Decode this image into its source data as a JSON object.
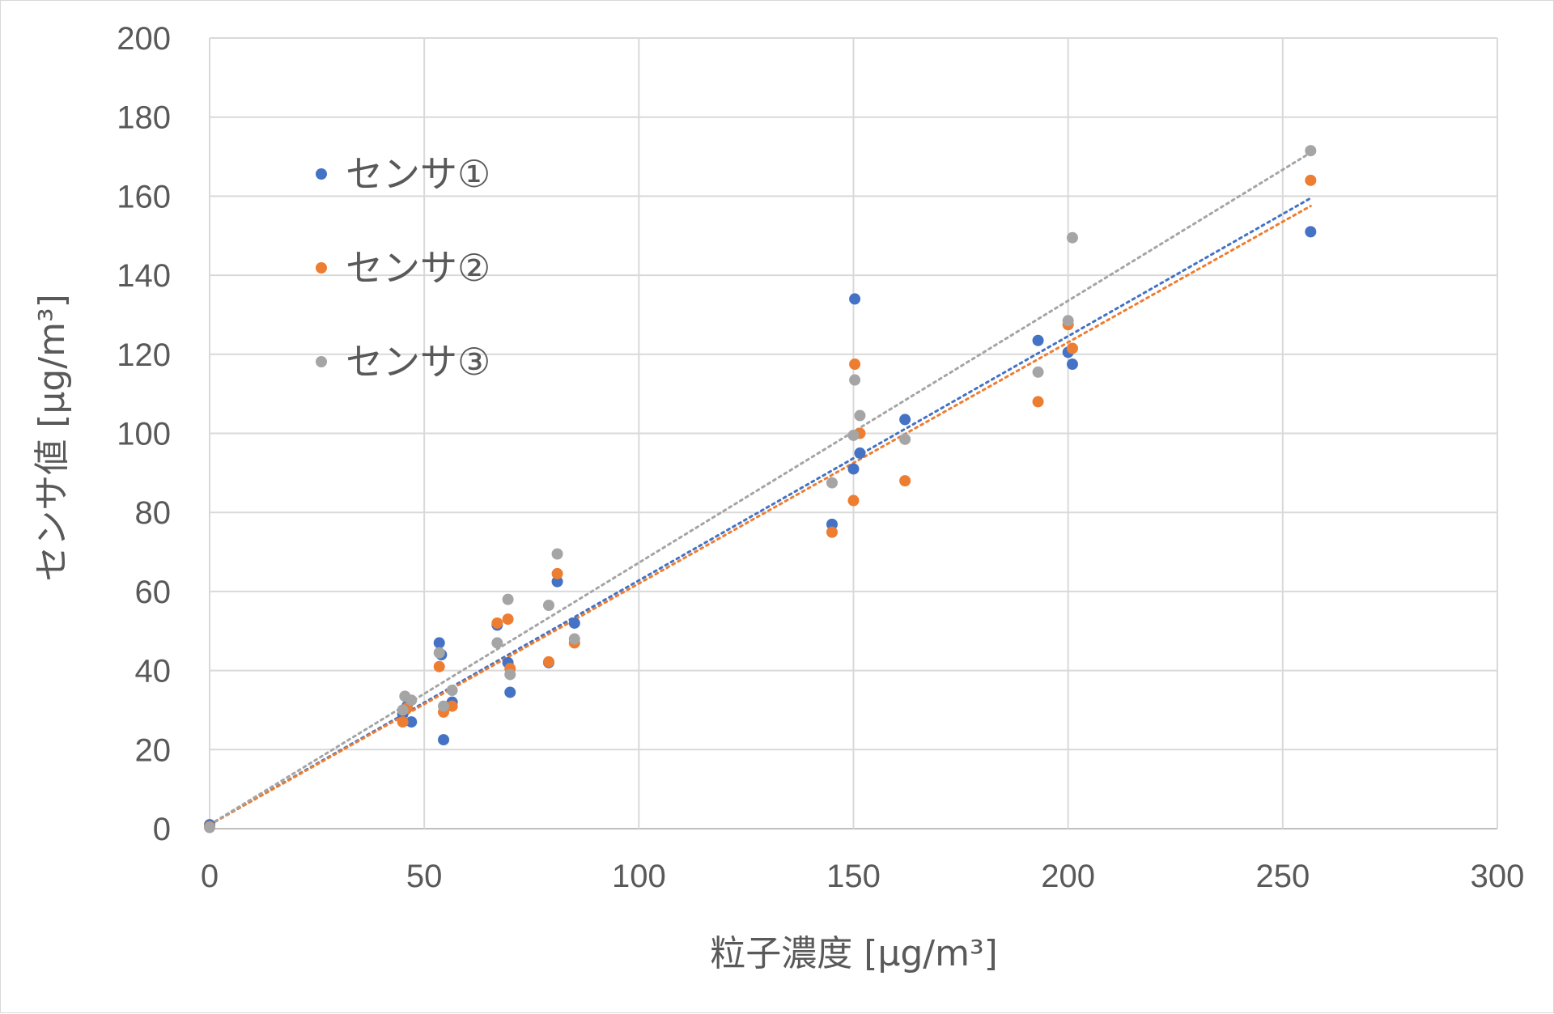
{
  "chart_data": {
    "type": "scatter",
    "title": "",
    "xlabel": "粒子濃度 [μg/m³]",
    "ylabel": "センサ値 [μg/m³]",
    "xlim": [
      0,
      300
    ],
    "ylim": [
      0,
      200
    ],
    "xticks": [
      0,
      50,
      100,
      150,
      200,
      250,
      300
    ],
    "yticks": [
      0,
      20,
      40,
      60,
      80,
      100,
      120,
      140,
      160,
      180,
      200
    ],
    "grid": true,
    "legend_position": "top-left",
    "trendline": "linear, dotted",
    "series": [
      {
        "name": "センサ①",
        "color": "#4472c4",
        "points": [
          [
            0,
            1
          ],
          [
            45,
            29
          ],
          [
            46,
            31
          ],
          [
            47,
            27
          ],
          [
            53.5,
            47
          ],
          [
            54,
            44
          ],
          [
            54.5,
            22.5
          ],
          [
            56.5,
            32
          ],
          [
            67,
            51.5
          ],
          [
            69.5,
            42
          ],
          [
            70,
            34.5
          ],
          [
            79,
            42
          ],
          [
            81,
            62.5
          ],
          [
            85,
            52
          ],
          [
            145,
            77
          ],
          [
            150,
            91
          ],
          [
            150.3,
            134
          ],
          [
            151.5,
            95
          ],
          [
            162,
            103.5
          ],
          [
            193,
            123.5
          ],
          [
            200,
            120.5
          ],
          [
            201,
            117.5
          ],
          [
            256.5,
            151
          ]
        ],
        "trend": [
          [
            0,
            1
          ],
          [
            256.5,
            159.5
          ]
        ]
      },
      {
        "name": "センサ②",
        "color": "#ed7d31",
        "points": [
          [
            0,
            0.5
          ],
          [
            45,
            27
          ],
          [
            46,
            30.5
          ],
          [
            53.5,
            41
          ],
          [
            54.5,
            29.5
          ],
          [
            56.5,
            31
          ],
          [
            67,
            52
          ],
          [
            69.5,
            53
          ],
          [
            70,
            40.5
          ],
          [
            79,
            42.2
          ],
          [
            81,
            64.5
          ],
          [
            85,
            47
          ],
          [
            145,
            75
          ],
          [
            150,
            83
          ],
          [
            150.3,
            117.5
          ],
          [
            151.5,
            100
          ],
          [
            162,
            88
          ],
          [
            193,
            108
          ],
          [
            200,
            127.5
          ],
          [
            201,
            121.5
          ],
          [
            256.5,
            164
          ]
        ],
        "trend": [
          [
            0,
            1
          ],
          [
            256.5,
            157.5
          ]
        ]
      },
      {
        "name": "センサ③",
        "color": "#a5a5a5",
        "points": [
          [
            0,
            0.3
          ],
          [
            45,
            30
          ],
          [
            45.5,
            33.5
          ],
          [
            47,
            32.5
          ],
          [
            53.5,
            44.5
          ],
          [
            54.5,
            31
          ],
          [
            56.5,
            35
          ],
          [
            67,
            47
          ],
          [
            69.5,
            58
          ],
          [
            70,
            39
          ],
          [
            79,
            56.5
          ],
          [
            81,
            69.5
          ],
          [
            85,
            48
          ],
          [
            145,
            87.5
          ],
          [
            150,
            99.5
          ],
          [
            150.3,
            113.5
          ],
          [
            151.5,
            104.5
          ],
          [
            162,
            98.5
          ],
          [
            193,
            115.5
          ],
          [
            200,
            128.5
          ],
          [
            201,
            149.5
          ],
          [
            256.5,
            171.5
          ]
        ],
        "trend": [
          [
            0,
            1
          ],
          [
            256.5,
            171
          ]
        ]
      }
    ]
  }
}
